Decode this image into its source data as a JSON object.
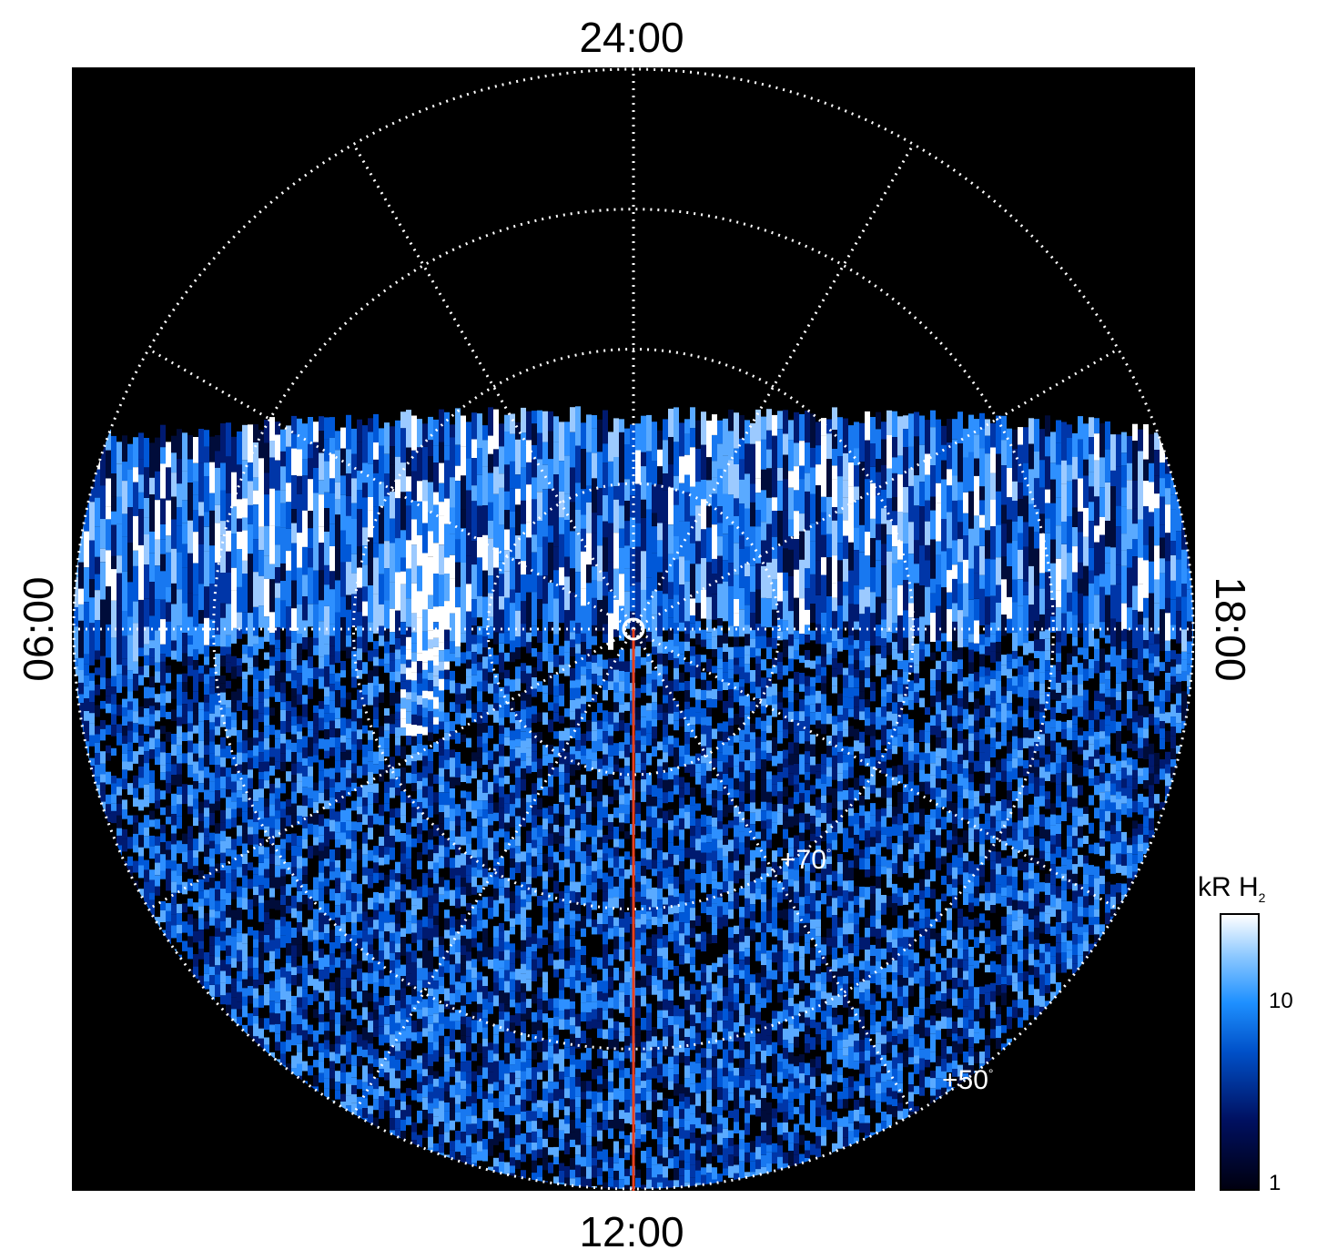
{
  "axis_labels": {
    "top": "24:00",
    "bottom": "12:00",
    "left": "06:00",
    "right": "18:00"
  },
  "latitude_labels": {
    "lat70": "+70",
    "lat50": "+50",
    "degree": "°"
  },
  "colorbar": {
    "title_main": "kR H",
    "title_sub": "2",
    "ticks": {
      "t10": "10",
      "t1": "1"
    }
  },
  "colors": {
    "background": "#000000",
    "grid": "#ffffff",
    "meridian_line": "#e8401c",
    "emission_dark": "#001060",
    "emission_mid": "#1e90ff",
    "emission_bright": "#ffffff"
  }
}
